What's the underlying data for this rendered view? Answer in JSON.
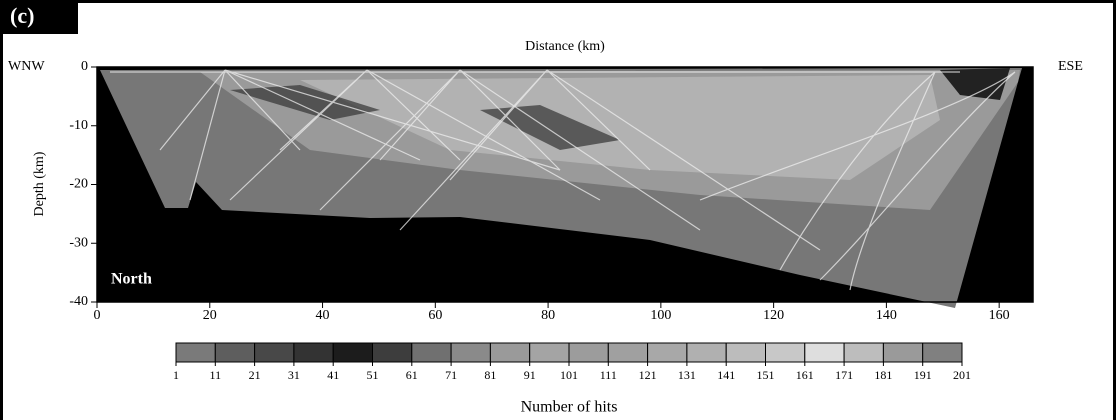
{
  "chart_data": {
    "type": "ray-coverage",
    "panel_label": "(c)",
    "xlabel": "Distance (km)",
    "ylabel": "Depth (km)",
    "left_label": "WNW",
    "right_label": "ESE",
    "annotation": "North",
    "xlim": [
      0,
      166
    ],
    "xticks": [
      0,
      20,
      40,
      60,
      80,
      100,
      120,
      140,
      160
    ],
    "ylim": [
      -40,
      0
    ],
    "yticks": [
      0,
      -10,
      -20,
      -30,
      -40
    ],
    "colorbar": {
      "label": "Number of hits",
      "bins": [
        1,
        11,
        21,
        31,
        41,
        51,
        61,
        71,
        81,
        91,
        101,
        111,
        121,
        131,
        141,
        151,
        161,
        171,
        181,
        191,
        201
      ],
      "colors": [
        "#7a7a7a",
        "#5e5e5e",
        "#484848",
        "#333333",
        "#1c1c1c",
        "#3d3d3d",
        "#707070",
        "#8a8a8a",
        "#9a9a9a",
        "#a4a4a4",
        "#9c9c9c",
        "#a0a0a0",
        "#a8a8a8",
        "#b0b0b0",
        "#bcbcbc",
        "#c8c8c8",
        "#dedede",
        "#bdbdbd",
        "#9a9a9a",
        "#808080"
      ]
    }
  }
}
